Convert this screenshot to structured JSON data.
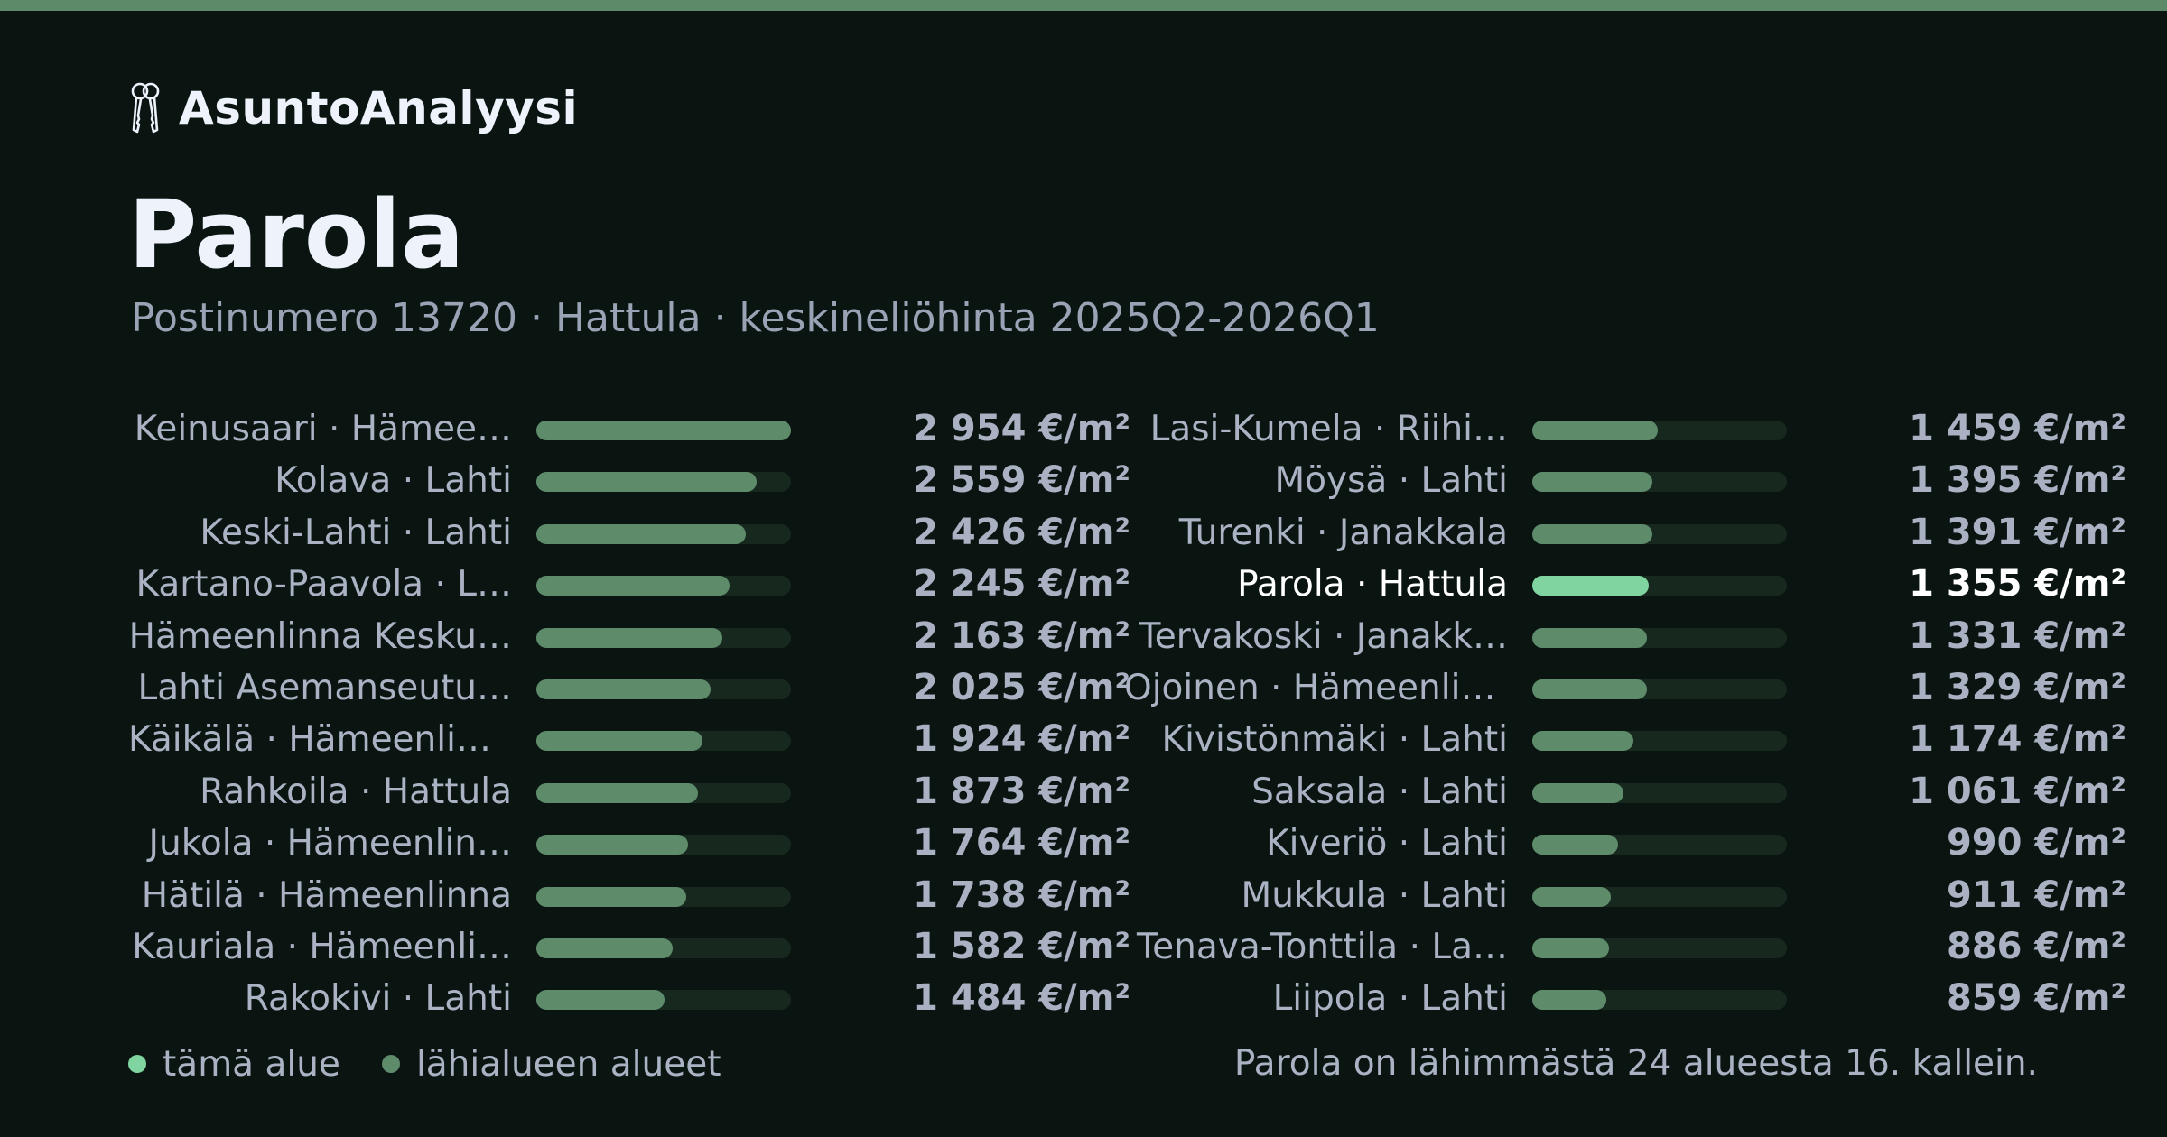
{
  "brand": {
    "name": "AsuntoAnalyysi",
    "icon": "keys-icon"
  },
  "title": "Parola",
  "subtitle": "Postinumero 13720 · Hattula · keskineliöhinta 2025Q2-2026Q1",
  "legend": {
    "current": "tämä alue",
    "neighbors": "lähialueen alueet"
  },
  "rank_note": "Parola on lähimmästä 24 alueesta 16. kallein.",
  "colors": {
    "background": "#0a1512",
    "accent": "#5d8a68",
    "bar_neighbor": "#5e8c6b",
    "bar_current": "#7fd4a0",
    "track": "#17281f"
  },
  "chart_data": {
    "type": "bar",
    "orientation": "horizontal",
    "unit": "€/m²",
    "xlim": [
      0,
      2954
    ],
    "highlight": "Parola · Hattula",
    "categories": [
      "Keinusaari · Hämee…",
      "Kolava · Lahti",
      "Keski-Lahti · Lahti",
      "Kartano-Paavola · L…",
      "Hämeenlinna Kesku…",
      "Lahti Asemanseutu…",
      "Käikälä · Hämeenlin…",
      "Rahkoila · Hattula",
      "Jukola · Hämeenlin…",
      "Hätilä · Hämeenlinna",
      "Kauriala · Hämeenli…",
      "Rakokivi · Lahti",
      "Lasi-Kumela · Riihi…",
      "Möysä · Lahti",
      "Turenki · Janakkala",
      "Parola · Hattula",
      "Tervakoski · Janakk…",
      "Ojoinen · Hämeenlin…",
      "Kivistönmäki · Lahti",
      "Saksala · Lahti",
      "Kiveriö · Lahti",
      "Mukkula · Lahti",
      "Tenava-Tonttila · La…",
      "Liipola · Lahti"
    ],
    "values": [
      2954,
      2559,
      2426,
      2245,
      2163,
      2025,
      1924,
      1873,
      1764,
      1738,
      1582,
      1484,
      1459,
      1395,
      1391,
      1355,
      1331,
      1329,
      1174,
      1061,
      990,
      911,
      886,
      859
    ],
    "value_labels": [
      "2 954 €/m²",
      "2 559 €/m²",
      "2 426 €/m²",
      "2 245 €/m²",
      "2 163 €/m²",
      "2 025 €/m²",
      "1 924 €/m²",
      "1 873 €/m²",
      "1 764 €/m²",
      "1 738 €/m²",
      "1 582 €/m²",
      "1 484 €/m²",
      "1 459 €/m²",
      "1 395 €/m²",
      "1 391 €/m²",
      "1 355 €/m²",
      "1 331 €/m²",
      "1 329 €/m²",
      "1 174 €/m²",
      "1 061 €/m²",
      "990 €/m²",
      "911 €/m²",
      "886 €/m²",
      "859 €/m²"
    ]
  }
}
